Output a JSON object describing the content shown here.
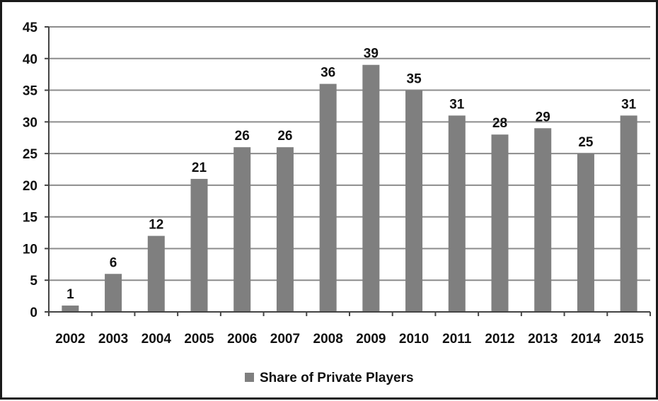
{
  "chart_data": {
    "type": "bar",
    "title": "",
    "xlabel": "",
    "ylabel": "",
    "categories": [
      "2002",
      "2003",
      "2004",
      "2005",
      "2006",
      "2007",
      "2008",
      "2009",
      "2010",
      "2011",
      "2012",
      "2013",
      "2014",
      "2015"
    ],
    "series": [
      {
        "name": "Share of Private Players",
        "values": [
          1,
          6,
          12,
          21,
          26,
          26,
          36,
          39,
          35,
          31,
          28,
          29,
          25,
          31
        ],
        "color": "#7f7f7f"
      }
    ],
    "ylim": [
      0,
      45
    ],
    "yticks": [
      0,
      5,
      10,
      15,
      20,
      25,
      30,
      35,
      40,
      45
    ],
    "grid": true,
    "gridColor": "#8c8c8c",
    "data_labels": true,
    "legend": "bottom-center"
  }
}
